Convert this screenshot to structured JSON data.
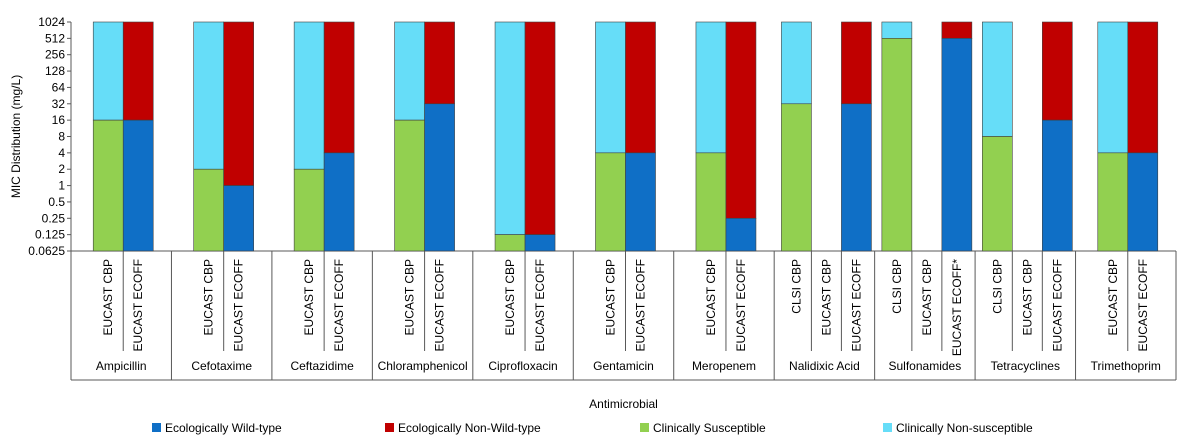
{
  "chart_data": {
    "type": "bar",
    "ylabel": "MIC  Distribution (mg/L)",
    "xlabel": "Antimicrobial",
    "y_scale": "log2",
    "ylim": [
      0.0625,
      1024
    ],
    "y_ticks": [
      "0.0625",
      "0.125",
      "0.25",
      "0.5",
      "1",
      "2",
      "4",
      "8",
      "16",
      "32",
      "64",
      "128",
      "256",
      "512",
      "1024"
    ],
    "grid": false,
    "legend_position": "bottom",
    "legend": [
      {
        "name": "Ecologically Wild-type",
        "color": "#0f6fc6"
      },
      {
        "name": "Ecologically Non-Wild-type",
        "color": "#c00000"
      },
      {
        "name": "Clinically Susceptible",
        "color": "#92d050"
      },
      {
        "name": "Clinically Non-susceptible",
        "color": "#66ddf8"
      }
    ],
    "groups": [
      {
        "name": "Ampicillin",
        "bars": [
          {
            "label": "EUCAST CBP",
            "kind": "clinical",
            "threshold": 16
          },
          {
            "label": "EUCAST ECOFF",
            "kind": "ecological",
            "threshold": 16
          }
        ]
      },
      {
        "name": "Cefotaxime",
        "bars": [
          {
            "label": "EUCAST CBP",
            "kind": "clinical",
            "threshold": 2
          },
          {
            "label": "EUCAST ECOFF",
            "kind": "ecological",
            "threshold": 1
          }
        ]
      },
      {
        "name": "Ceftazidime",
        "bars": [
          {
            "label": "EUCAST CBP",
            "kind": "clinical",
            "threshold": 2
          },
          {
            "label": "EUCAST ECOFF",
            "kind": "ecological",
            "threshold": 4
          }
        ]
      },
      {
        "name": "Chloramphenicol",
        "bars": [
          {
            "label": "EUCAST CBP",
            "kind": "clinical",
            "threshold": 16
          },
          {
            "label": "EUCAST ECOFF",
            "kind": "ecological",
            "threshold": 32
          }
        ]
      },
      {
        "name": "Ciprofloxacin",
        "bars": [
          {
            "label": "EUCAST CBP",
            "kind": "clinical",
            "threshold": 0.125
          },
          {
            "label": "EUCAST ECOFF",
            "kind": "ecological",
            "threshold": 0.125
          }
        ]
      },
      {
        "name": "Gentamicin",
        "bars": [
          {
            "label": "EUCAST CBP",
            "kind": "clinical",
            "threshold": 4
          },
          {
            "label": "EUCAST ECOFF",
            "kind": "ecological",
            "threshold": 4
          }
        ]
      },
      {
        "name": "Meropenem",
        "bars": [
          {
            "label": "EUCAST CBP",
            "kind": "clinical",
            "threshold": 4
          },
          {
            "label": "EUCAST ECOFF",
            "kind": "ecological",
            "threshold": 0.25
          }
        ]
      },
      {
        "name": "Nalidixic Acid",
        "bars": [
          {
            "label": "CLSI CBP",
            "kind": "clinical",
            "threshold": 32
          },
          {
            "label": "EUCAST CBP",
            "kind": "none",
            "threshold": null
          },
          {
            "label": "EUCAST ECOFF",
            "kind": "ecological",
            "threshold": 32
          }
        ]
      },
      {
        "name": "Sulfonamides",
        "bars": [
          {
            "label": "CLSI CBP",
            "kind": "clinical",
            "threshold": 512
          },
          {
            "label": "EUCAST CBP",
            "kind": "none",
            "threshold": null
          },
          {
            "label": "EUCAST ECOFF*",
            "kind": "ecological",
            "threshold": 512
          }
        ]
      },
      {
        "name": "Tetracyclines",
        "bars": [
          {
            "label": "CLSI CBP",
            "kind": "clinical",
            "threshold": 8
          },
          {
            "label": "EUCAST CBP",
            "kind": "none",
            "threshold": null
          },
          {
            "label": "EUCAST ECOFF",
            "kind": "ecological",
            "threshold": 16
          }
        ]
      },
      {
        "name": "Trimethoprim",
        "bars": [
          {
            "label": "EUCAST CBP",
            "kind": "clinical",
            "threshold": 4
          },
          {
            "label": "EUCAST ECOFF",
            "kind": "ecological",
            "threshold": 4
          }
        ]
      }
    ]
  }
}
